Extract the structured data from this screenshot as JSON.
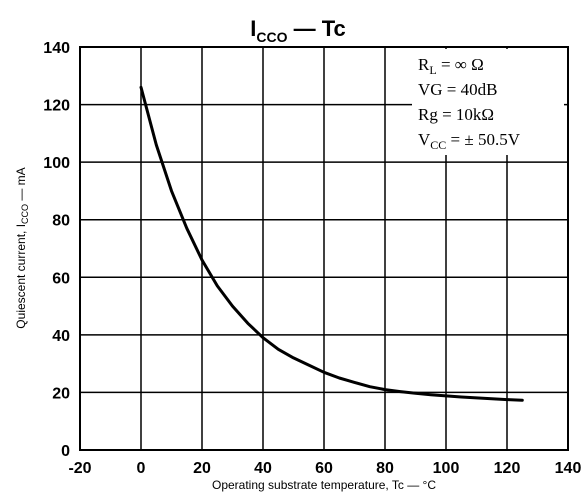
{
  "chart_data": {
    "type": "line",
    "title": {
      "main": "I",
      "sub": "CCO",
      "rest": " — Tc"
    },
    "xlabel": "Operating substrate temperature, Tc — °C",
    "ylabel": {
      "main": "Quiescent current, I",
      "sub": "CCO",
      "rest": " — mA"
    },
    "xlim": [
      -20,
      140
    ],
    "ylim": [
      0,
      140
    ],
    "xticks": [
      -20,
      0,
      20,
      40,
      60,
      80,
      100,
      120,
      140
    ],
    "yticks": [
      0,
      20,
      40,
      60,
      80,
      100,
      120,
      140
    ],
    "grid": true,
    "conditions": [
      {
        "main": "R",
        "sub": "L",
        "rest": " = ∞ Ω"
      },
      {
        "main": "VG = 40dB",
        "sub": "",
        "rest": ""
      },
      {
        "main": "Rg = 10kΩ",
        "sub": "",
        "rest": ""
      },
      {
        "main": "V",
        "sub": "CC",
        "rest": " = ± 50.5V"
      }
    ],
    "series": [
      {
        "x": [
          0,
          5,
          10,
          15,
          20,
          25,
          30,
          35,
          40,
          45,
          50,
          55,
          60,
          65,
          70,
          75,
          80,
          85,
          90,
          95,
          100,
          105,
          110,
          115,
          120,
          125
        ],
        "y": [
          126,
          106,
          90,
          77,
          66,
          57,
          50,
          44,
          39,
          35,
          32,
          29.5,
          27,
          25,
          23.5,
          22,
          21,
          20.3,
          19.7,
          19.2,
          18.8,
          18.4,
          18.1,
          17.8,
          17.5,
          17.3
        ]
      }
    ]
  }
}
